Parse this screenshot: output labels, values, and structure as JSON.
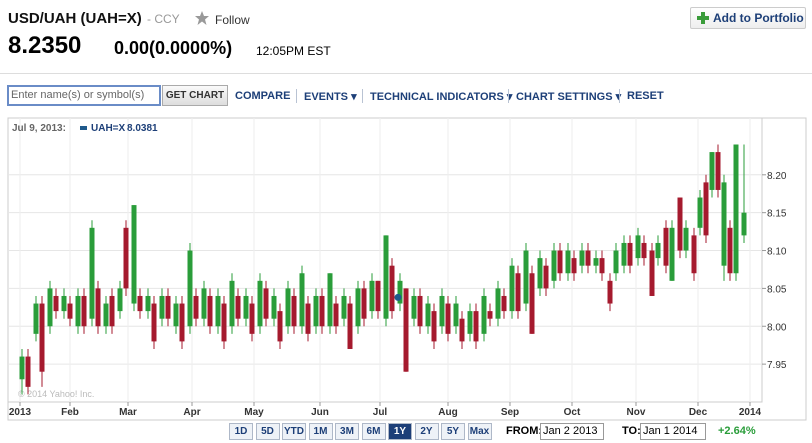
{
  "header": {
    "title": "USD/UAH (UAH=X)",
    "exchange": "- CCY",
    "follow": "Follow",
    "add_portfolio": "Add to Portfolio",
    "price": "8.2350",
    "change": "0.00(0.0000%)",
    "time": "12:05PM EST"
  },
  "toolbar": {
    "placeholder": "Enter name(s) or symbol(s)",
    "get_chart": "GET CHART",
    "items": [
      "COMPARE",
      "EVENTS",
      "TECHNICAL INDICATORS",
      "CHART SETTINGS",
      "RESET"
    ]
  },
  "chart_data": {
    "type": "candlestick",
    "legend": {
      "date": "Jul 9, 2013:",
      "label": "UAH=X",
      "value": 8.0381,
      "x": 189
    },
    "watermark": "© 2014 Yahoo! Inc.",
    "up_color": "#2a9d3a",
    "down_color": "#a51a2e",
    "marker_color": "#1f5a8c",
    "xlim": [
      -6,
      371
    ],
    "ylim": [
      7.9,
      8.275
    ],
    "grid": true,
    "xticks": [
      {
        "value": 0,
        "label": "2013"
      },
      {
        "value": 25,
        "label": "Feb"
      },
      {
        "value": 54,
        "label": "Mar"
      },
      {
        "value": 86,
        "label": "Apr"
      },
      {
        "value": 117,
        "label": "May"
      },
      {
        "value": 150,
        "label": "Jun"
      },
      {
        "value": 180,
        "label": "Jul"
      },
      {
        "value": 214,
        "label": "Aug"
      },
      {
        "value": 245,
        "label": "Sep"
      },
      {
        "value": 276,
        "label": "Oct"
      },
      {
        "value": 308,
        "label": "Nov"
      },
      {
        "value": 339,
        "label": "Dec"
      },
      {
        "value": 365,
        "label": "2014"
      }
    ],
    "yticks": [
      {
        "value": 7.95,
        "label": "7.95"
      },
      {
        "value": 8.0,
        "label": "8.00"
      },
      {
        "value": 8.05,
        "label": "8.05"
      },
      {
        "value": 8.1,
        "label": "8.10"
      },
      {
        "value": 8.15,
        "label": "8.15"
      },
      {
        "value": 8.2,
        "label": "8.20"
      }
    ],
    "x": [
      1,
      4,
      8,
      11,
      15,
      18,
      22,
      25,
      29,
      32,
      36,
      39,
      43,
      46,
      50,
      53,
      57,
      60,
      64,
      67,
      71,
      74,
      78,
      81,
      85,
      88,
      92,
      95,
      99,
      102,
      106,
      109,
      113,
      116,
      120,
      123,
      127,
      130,
      134,
      137,
      141,
      144,
      148,
      151,
      155,
      158,
      162,
      165,
      169,
      172,
      176,
      179,
      183,
      186,
      190,
      193,
      197,
      200,
      204,
      207,
      211,
      214,
      218,
      221,
      225,
      228,
      232,
      235,
      239,
      242,
      246,
      249,
      253,
      256,
      260,
      263,
      267,
      270,
      274,
      277,
      281,
      284,
      288,
      291,
      295,
      298,
      302,
      305,
      309,
      312,
      316,
      319,
      323,
      326,
      330,
      333,
      337,
      340,
      343,
      346,
      349,
      352,
      355,
      358,
      362
    ],
    "open": [
      7.93,
      7.96,
      7.99,
      8.03,
      8.0,
      8.04,
      8.02,
      8.03,
      8.0,
      8.04,
      8.01,
      8.05,
      8.0,
      8.04,
      8.02,
      8.13,
      8.03,
      8.04,
      8.02,
      8.03,
      8.01,
      8.04,
      8.0,
      8.03,
      8.0,
      8.04,
      8.01,
      8.04,
      8.0,
      8.03,
      8.0,
      8.04,
      8.01,
      8.03,
      8.0,
      8.05,
      8.01,
      8.02,
      8.0,
      8.04,
      8.0,
      8.03,
      8.0,
      8.04,
      8.0,
      8.03,
      8.01,
      8.03,
      8.0,
      8.05,
      8.02,
      8.06,
      8.01,
      8.08,
      8.03,
      8.05,
      8.01,
      8.04,
      8.0,
      8.02,
      8.0,
      8.03,
      8.0,
      8.01,
      7.99,
      8.02,
      7.99,
      8.02,
      8.01,
      8.04,
      8.02,
      8.07,
      8.03,
      8.07,
      8.05,
      8.08,
      8.06,
      8.1,
      8.07,
      8.09,
      8.08,
      8.1,
      8.08,
      8.09,
      8.06,
      8.07,
      8.08,
      8.11,
      8.09,
      8.11,
      8.1,
      8.09,
      8.13,
      8.06,
      8.17,
      8.1,
      8.12,
      8.13,
      8.19,
      8.18,
      8.23,
      8.08,
      8.13,
      8.07,
      8.12
    ],
    "high": [
      7.97,
      7.97,
      8.04,
      8.04,
      8.06,
      8.05,
      8.05,
      8.04,
      8.05,
      8.05,
      8.14,
      8.06,
      8.04,
      8.05,
      8.06,
      8.14,
      8.16,
      8.05,
      8.05,
      8.04,
      8.05,
      8.05,
      8.04,
      8.04,
      8.11,
      8.05,
      8.06,
      8.05,
      8.05,
      8.04,
      8.07,
      8.05,
      8.05,
      8.04,
      8.07,
      8.06,
      8.05,
      8.03,
      8.06,
      8.05,
      8.08,
      8.04,
      8.05,
      8.05,
      8.07,
      8.04,
      8.05,
      8.04,
      8.06,
      8.06,
      8.07,
      8.06,
      8.12,
      8.09,
      8.07,
      8.05,
      8.05,
      8.05,
      8.04,
      8.03,
      8.05,
      8.04,
      8.04,
      8.02,
      8.03,
      8.03,
      8.05,
      8.03,
      8.06,
      8.05,
      8.09,
      8.08,
      8.11,
      8.08,
      8.1,
      8.09,
      8.11,
      8.11,
      8.11,
      8.1,
      8.11,
      8.11,
      8.1,
      8.1,
      8.07,
      8.11,
      8.12,
      8.12,
      8.13,
      8.12,
      8.11,
      8.12,
      8.14,
      8.14,
      8.17,
      8.14,
      8.13,
      8.18,
      8.2,
      8.23,
      8.24,
      8.2,
      8.14,
      8.24,
      8.24
    ],
    "low": [
      7.91,
      7.91,
      7.98,
      7.92,
      7.99,
      8.01,
      8.01,
      8.0,
      7.99,
      7.99,
      8.0,
      7.99,
      7.99,
      7.99,
      8.01,
      8.04,
      8.02,
      8.01,
      8.01,
      7.97,
      8.0,
      8.0,
      7.99,
      7.97,
      7.99,
      8.0,
      8.0,
      7.99,
      7.99,
      7.97,
      7.99,
      8.0,
      8.0,
      7.98,
      7.99,
      8.0,
      8.0,
      7.97,
      7.99,
      7.99,
      7.99,
      7.98,
      7.99,
      7.99,
      7.99,
      7.99,
      8.0,
      7.97,
      7.99,
      8.0,
      8.01,
      8.01,
      8.0,
      8.01,
      8.02,
      7.94,
      8.0,
      7.99,
      7.99,
      7.97,
      7.99,
      7.98,
      7.99,
      7.97,
      7.98,
      7.97,
      7.98,
      8.0,
      8.0,
      8.01,
      8.01,
      8.01,
      8.02,
      7.99,
      8.04,
      8.04,
      8.05,
      8.06,
      8.06,
      8.06,
      8.07,
      8.07,
      8.07,
      8.06,
      8.02,
      8.06,
      8.07,
      8.07,
      8.08,
      8.08,
      8.04,
      8.08,
      8.07,
      8.06,
      8.09,
      8.09,
      8.06,
      8.12,
      8.11,
      8.17,
      8.17,
      8.06,
      8.06,
      8.06,
      8.11
    ],
    "close": [
      7.96,
      7.92,
      8.03,
      7.94,
      8.05,
      8.02,
      8.04,
      8.01,
      8.04,
      8.0,
      8.13,
      8.0,
      8.03,
      8.0,
      8.05,
      8.05,
      8.16,
      8.02,
      8.04,
      7.98,
      8.04,
      8.01,
      8.03,
      7.98,
      8.1,
      8.01,
      8.05,
      8.0,
      8.04,
      7.98,
      8.06,
      8.01,
      8.04,
      7.99,
      8.06,
      8.01,
      8.04,
      7.98,
      8.05,
      8.0,
      8.07,
      7.99,
      8.04,
      8.0,
      8.07,
      8.0,
      8.04,
      7.97,
      8.05,
      8.01,
      8.06,
      8.02,
      8.12,
      8.02,
      8.06,
      7.94,
      8.04,
      8.0,
      8.03,
      7.98,
      8.04,
      7.99,
      8.03,
      7.98,
      8.02,
      7.98,
      8.04,
      8.01,
      8.05,
      8.02,
      8.08,
      8.02,
      8.1,
      7.99,
      8.09,
      8.05,
      8.1,
      8.07,
      8.1,
      8.07,
      8.1,
      8.08,
      8.09,
      8.07,
      8.03,
      8.1,
      8.11,
      8.08,
      8.12,
      8.09,
      8.04,
      8.11,
      8.08,
      8.13,
      8.1,
      8.13,
      8.07,
      8.17,
      8.12,
      8.23,
      8.18,
      8.19,
      8.07,
      8.24,
      8.15
    ]
  },
  "range": {
    "buttons": [
      "1D",
      "5D",
      "YTD",
      "1M",
      "3M",
      "6M",
      "1Y",
      "2Y",
      "5Y",
      "Max"
    ],
    "active": "1Y",
    "from_label": "FROM:",
    "from": "Jan 2 2013",
    "to_label": "TO:",
    "to": "Jan 1 2014",
    "change": "+2.64%"
  }
}
